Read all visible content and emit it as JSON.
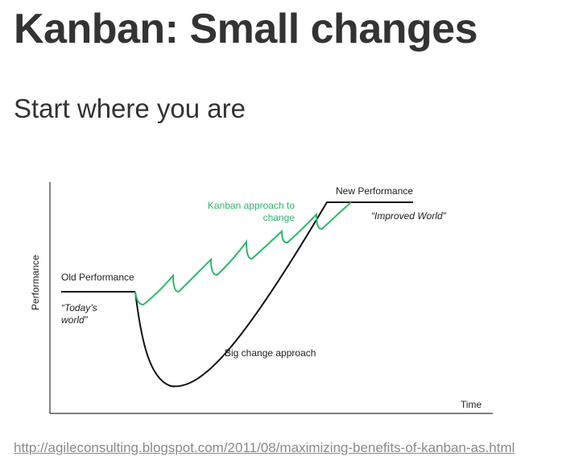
{
  "slide": {
    "title": "Kanban: Small changes",
    "subtitle": "Start where you are",
    "source_link": "http://agileconsulting.blogspot.com/2011/08/maximizing-benefits-of-kanban-as.html"
  },
  "figure": {
    "y_axis_label": "Performance",
    "x_axis_label": "Time",
    "old_performance": "Old Performance",
    "todays_world_line1": "“Today’s",
    "todays_world_line2": "world”",
    "new_performance": "New Performance",
    "improved_world": "“Improved World”",
    "kanban_line1": "Kanban approach to",
    "kanban_line2": "change",
    "big_change": "Big change approach"
  },
  "colors": {
    "kanban_curve": "#2db86a",
    "big_change_curve": "#111111",
    "axis": "#333333"
  }
}
